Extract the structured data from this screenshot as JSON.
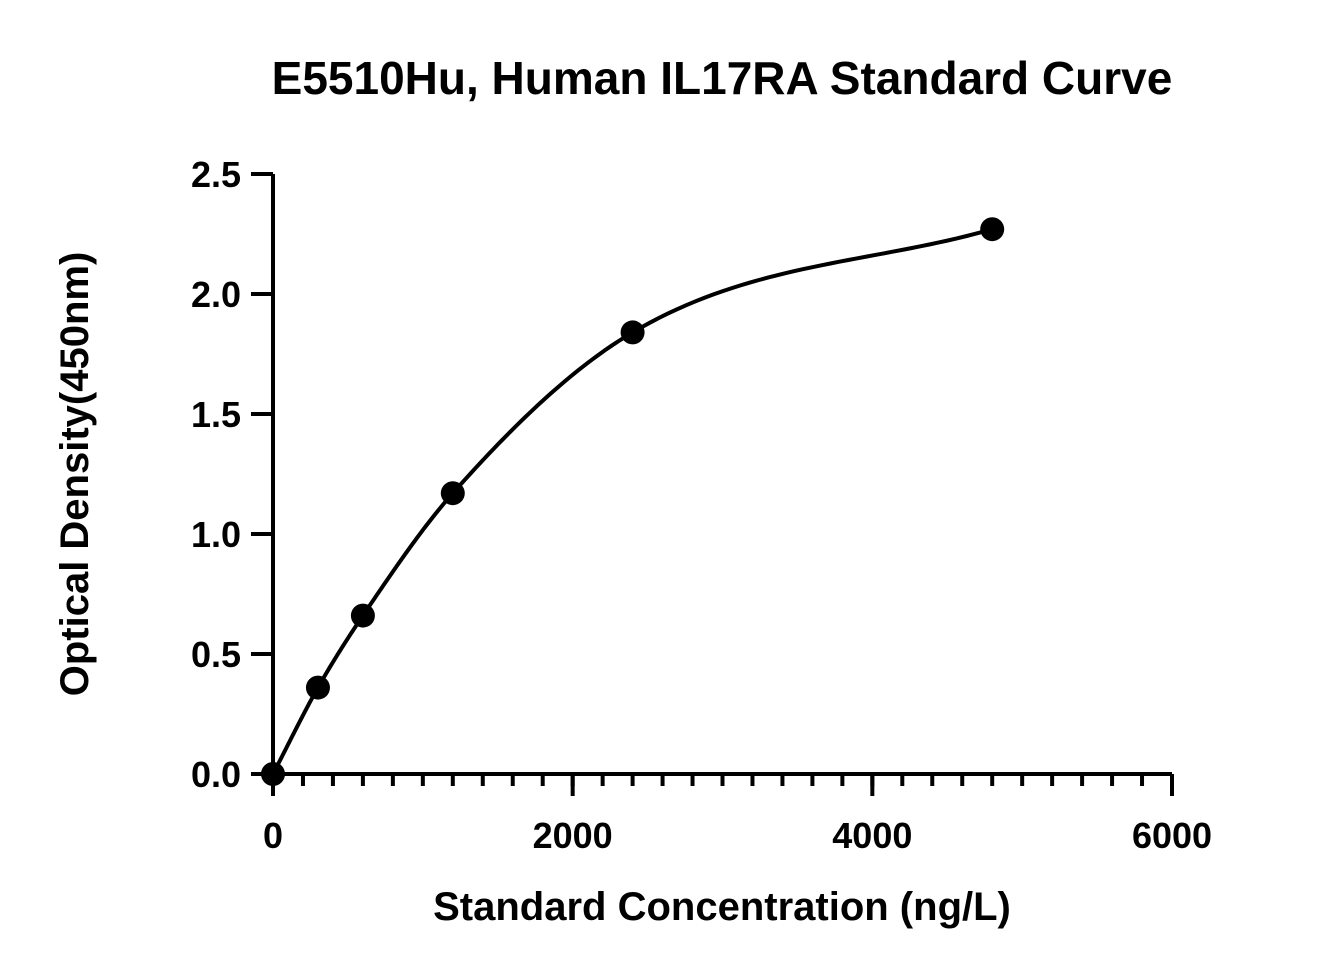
{
  "chart_data": {
    "type": "scatter",
    "title": "E5510Hu, Human IL17RA Standard Curve",
    "xlabel": "Standard Concentration (ng/L)",
    "ylabel": "Optical Density(450nm)",
    "xlim": [
      0,
      6000
    ],
    "ylim": [
      0,
      2.5
    ],
    "x_ticks": [
      "0",
      "2000",
      "4000",
      "6000"
    ],
    "y_ticks": [
      "0.0",
      "0.5",
      "1.0",
      "1.5",
      "2.0",
      "2.5"
    ],
    "x_minor_step": 200,
    "series": [
      {
        "x": [
          0,
          300,
          600,
          1200,
          2400,
          4800
        ],
        "y": [
          0.0,
          0.36,
          0.66,
          1.17,
          1.84,
          2.27
        ]
      }
    ],
    "fit_curve": true,
    "grid": false,
    "legend": "none"
  }
}
